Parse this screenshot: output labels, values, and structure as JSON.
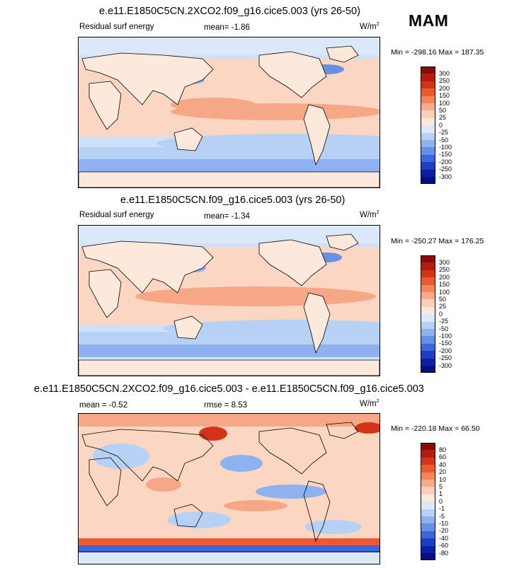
{
  "season": "MAM",
  "panels": [
    {
      "title": "e.e11.E1850C5CN.2XCO2.f09_g16.cice5.003 (yrs 26-50)",
      "left_label": "Residual surf energy",
      "mean_label": "mean=  -1.86",
      "units": "W/m",
      "units_exp": "2",
      "minmax": "Min = -298.16 Max = 187.35",
      "colorbar": {
        "ticks": [
          "300",
          "250",
          "200",
          "150",
          "100",
          "50",
          "25",
          "0",
          "-25",
          "-50",
          "-100",
          "-150",
          "-200",
          "-250",
          "-300"
        ],
        "colors": [
          "#8b0a0a",
          "#b51b0e",
          "#d5321a",
          "#ea5a2e",
          "#f4855a",
          "#f8ab8a",
          "#fbcfb7",
          "#fde9dc",
          "#dbe8fa",
          "#b7d1f5",
          "#8db2ef",
          "#6690e6",
          "#3d66dc",
          "#1b3dc8",
          "#0a1ea8",
          "#070f80"
        ]
      }
    },
    {
      "title": "e.e11.E1850C5CN.f09_g16.cice5.003 (yrs 26-50)",
      "left_label": "Residual surf energy",
      "mean_label": "mean=  -1.34",
      "units": "W/m",
      "units_exp": "2",
      "minmax": "Min = -250.27 Max = 176.25",
      "colorbar": {
        "ticks": [
          "300",
          "250",
          "200",
          "150",
          "100",
          "50",
          "25",
          "0",
          "-25",
          "-50",
          "-100",
          "-150",
          "-200",
          "-250",
          "-300"
        ],
        "colors": [
          "#8b0a0a",
          "#b51b0e",
          "#d5321a",
          "#ea5a2e",
          "#f4855a",
          "#f8ab8a",
          "#fbcfb7",
          "#fde9dc",
          "#dbe8fa",
          "#b7d1f5",
          "#8db2ef",
          "#6690e6",
          "#3d66dc",
          "#1b3dc8",
          "#0a1ea8",
          "#070f80"
        ]
      }
    },
    {
      "title": "e.e11.E1850C5CN.2XCO2.f09_g16.cice5.003 - e.e11.E1850C5CN.f09_g16.cice5.003",
      "left_label": "mean =  -0.52",
      "mean_label": "rmse =  8.53",
      "units": "W/m",
      "units_exp": "2",
      "minmax": "Min = -220.18 Max = 66.50",
      "colorbar": {
        "ticks": [
          "80",
          "60",
          "40",
          "20",
          "10",
          "5",
          "1",
          "0",
          "-1",
          "-5",
          "-10",
          "-20",
          "-40",
          "-60",
          "-80"
        ],
        "colors": [
          "#8b0a0a",
          "#b51b0e",
          "#d5321a",
          "#ea5a2e",
          "#f4855a",
          "#f8ab8a",
          "#fbcfb7",
          "#fde9dc",
          "#dbe8fa",
          "#b7d1f5",
          "#8db2ef",
          "#6690e6",
          "#3d66dc",
          "#1b3dc8",
          "#0a1ea8",
          "#070f80"
        ]
      }
    }
  ],
  "colors": {
    "ocean_warm": "#f7b49a",
    "ocean_light": "#fde3d2",
    "ocean_cool": "#b7d1f5",
    "ocean_cold": "#6690e6",
    "land": "#fde9dc",
    "coast": "#000000"
  }
}
